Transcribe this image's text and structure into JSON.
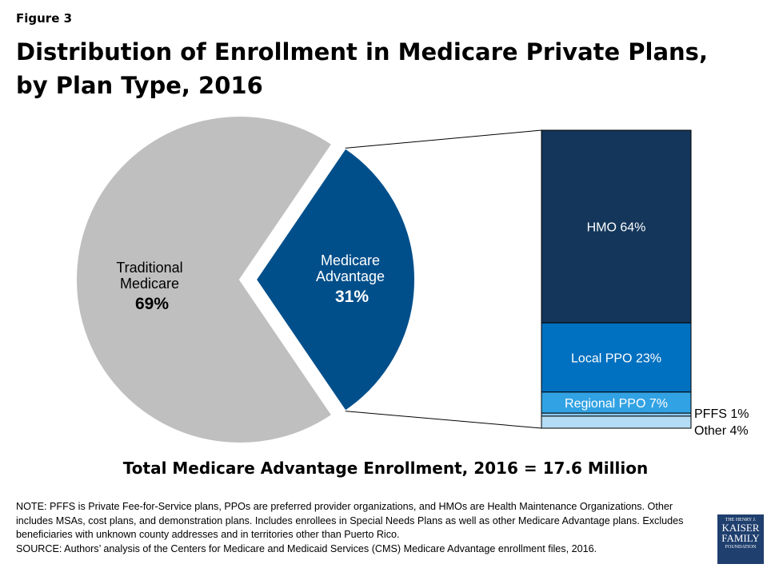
{
  "figure_label": "Figure 3",
  "title": "Distribution of Enrollment in Medicare Private Plans, by Plan Type, 2016",
  "total_line": "Total Medicare Advantage Enrollment, 2016 = 17.6 Million",
  "note": "NOTE: PFFS is Private Fee-for-Service plans, PPOs are preferred provider organizations, and HMOs are Health Maintenance Organizations. Other includes MSAs, cost plans, and demonstration plans.  Includes enrollees in Special Needs Plans as well as other Medicare Advantage plans. Excludes beneficiaries with unknown county addresses and in territories other than Puerto Rico.",
  "source": "SOURCE:  Authors’ analysis of the Centers for Medicare and Medicaid Services (CMS) Medicare Advantage enrollment files, 2016.",
  "logo": {
    "line1": "THE HENRY J.",
    "line2": "KAISER",
    "line3": "FAMILY",
    "line4": "FOUNDATION"
  },
  "chart_data": {
    "type": "pie",
    "subtype": "pie-of-bar",
    "pie": [
      {
        "label": "Traditional Medicare",
        "value": 69,
        "display": "69%",
        "color": "#bfbfbf"
      },
      {
        "label": "Medicare Advantage",
        "value": 31,
        "display": "31%",
        "color": "#004f8b",
        "exploded": true
      }
    ],
    "breakdown_of": "Medicare Advantage",
    "bar": [
      {
        "label": "HMO",
        "value": 64,
        "display": "HMO 64%",
        "color": "#13365a"
      },
      {
        "label": "Local PPO",
        "value": 23,
        "display": "Local PPO 23%",
        "color": "#0070c0"
      },
      {
        "label": "Regional PPO",
        "value": 7,
        "display": "Regional PPO 7%",
        "color": "#31a2e3"
      },
      {
        "label": "PFFS",
        "value": 1,
        "display": "PFFS 1%",
        "color": "#8cc8ee"
      },
      {
        "label": "Other",
        "value": 4,
        "display": "Other 4%",
        "color": "#b4dcf4"
      }
    ]
  }
}
